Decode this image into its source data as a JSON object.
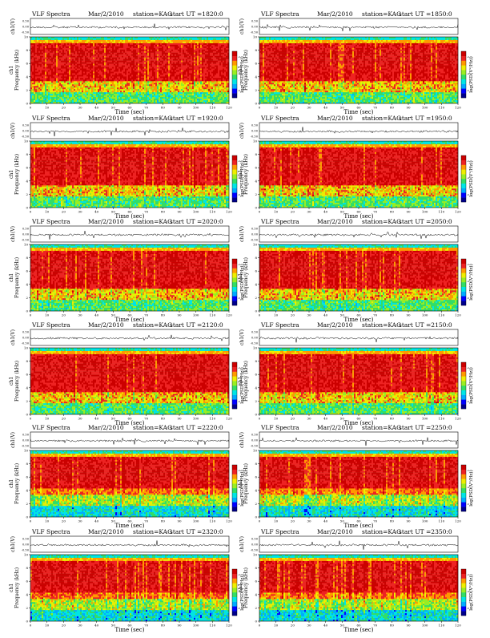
{
  "chart_data": [
    {
      "type": "heatmap",
      "title": "VLF Spectra",
      "date": "Mar/2/2010",
      "station": "station=KAG",
      "start_ut": "start  UT =1820:0",
      "top_ylabel": "ch1(V)",
      "top_ticks": [
        "0.50",
        "0.00",
        "-0.50"
      ],
      "ylabel": "Frequency (kHz)",
      "ylabel2": "ch1",
      "cbar_label": "log(PSD(V²/Hz))",
      "xlabel": "Time (sec)",
      "xlim": [
        0,
        120
      ],
      "ylim": [
        0,
        10
      ],
      "xticks": [
        "0",
        "10",
        "20",
        "30",
        "40",
        "50",
        "60",
        "70",
        "80",
        "90",
        "100",
        "110",
        "120"
      ],
      "yticks": [
        "0",
        "2",
        "4",
        "6",
        "8",
        "10"
      ],
      "cbar_ticks": [
        "-2",
        "-4",
        "-6"
      ]
    },
    {
      "type": "heatmap",
      "title": "VLF Spectra",
      "date": "Mar/2/2010",
      "station": "station=KAG",
      "start_ut": "start  UT =1850:0",
      "top_ylabel": "ch1(V)",
      "top_ticks": [
        "0.50",
        "0.00",
        "-0.50"
      ],
      "ylabel": "Frequency (kHz)",
      "ylabel2": "ch1",
      "cbar_label": "log(PSD(V²/Hz))",
      "xlabel": "Time (sec)",
      "xlim": [
        0,
        120
      ],
      "ylim": [
        0,
        10
      ],
      "xticks": [
        "0",
        "10",
        "20",
        "30",
        "40",
        "50",
        "60",
        "70",
        "80",
        "90",
        "100",
        "110",
        "120"
      ],
      "yticks": [
        "0",
        "2",
        "4",
        "6",
        "8",
        "10"
      ],
      "cbar_ticks": [
        "-2",
        "-4",
        "-6"
      ]
    },
    {
      "type": "heatmap",
      "title": "VLF Spectra",
      "date": "Mar/2/2010",
      "station": "station=KAG",
      "start_ut": "start  UT =1920:0",
      "top_ylabel": "ch1(V)",
      "top_ticks": [
        "0.50",
        "0.00",
        "-0.50"
      ],
      "ylabel": "Frequency (kHz)",
      "ylabel2": "ch1",
      "cbar_label": "log(PSD(V²/Hz))",
      "xlabel": "Time (sec)",
      "xlim": [
        0,
        120
      ],
      "ylim": [
        0,
        10
      ],
      "xticks": [
        "0",
        "10",
        "20",
        "30",
        "40",
        "50",
        "60",
        "70",
        "80",
        "90",
        "100",
        "110",
        "120"
      ],
      "yticks": [
        "0",
        "2",
        "4",
        "6",
        "8",
        "10"
      ],
      "cbar_ticks": [
        "-2",
        "-4",
        "-6"
      ]
    },
    {
      "type": "heatmap",
      "title": "VLF Spectra",
      "date": "Mar/2/2010",
      "station": "station=KAG",
      "start_ut": "start  UT =1950:0",
      "top_ylabel": "ch1(V)",
      "top_ticks": [
        "0.50",
        "0.00",
        "-0.50"
      ],
      "ylabel": "Frequency (kHz)",
      "ylabel2": "ch1",
      "cbar_label": "log(PSD(V²/Hz))",
      "xlabel": "Time (sec)",
      "xlim": [
        0,
        120
      ],
      "ylim": [
        0,
        10
      ],
      "xticks": [
        "0",
        "10",
        "20",
        "30",
        "40",
        "50",
        "60",
        "70",
        "80",
        "90",
        "100",
        "110",
        "120"
      ],
      "yticks": [
        "0",
        "2",
        "4",
        "6",
        "8",
        "10"
      ],
      "cbar_ticks": [
        "-2",
        "-4",
        "-6"
      ]
    },
    {
      "type": "heatmap",
      "title": "VLF Spectra",
      "date": "Mar/2/2010",
      "station": "station=KAG",
      "start_ut": "start  UT =2020:0",
      "top_ylabel": "ch1(V)",
      "top_ticks": [
        "0.50",
        "0.00",
        "-0.50"
      ],
      "ylabel": "Frequency (kHz)",
      "ylabel2": "ch1",
      "cbar_label": "log(PSD(V²/Hz))",
      "xlabel": "Time (sec)",
      "xlim": [
        0,
        120
      ],
      "ylim": [
        0,
        10
      ],
      "xticks": [
        "0",
        "10",
        "20",
        "30",
        "40",
        "50",
        "60",
        "70",
        "80",
        "90",
        "100",
        "110",
        "120"
      ],
      "yticks": [
        "0",
        "2",
        "4",
        "6",
        "8",
        "10"
      ],
      "cbar_ticks": [
        "-2",
        "-4",
        "-6"
      ]
    },
    {
      "type": "heatmap",
      "title": "VLF Spectra",
      "date": "Mar/2/2010",
      "station": "station=KAG",
      "start_ut": "start  UT =2050:0",
      "top_ylabel": "ch1(V)",
      "top_ticks": [
        "0.50",
        "0.00",
        "-0.50"
      ],
      "ylabel": "Frequency (kHz)",
      "ylabel2": "ch1",
      "cbar_label": "log(PSD(V²/Hz))",
      "xlabel": "Time (sec)",
      "xlim": [
        0,
        120
      ],
      "ylim": [
        0,
        10
      ],
      "xticks": [
        "0",
        "10",
        "20",
        "30",
        "40",
        "50",
        "60",
        "70",
        "80",
        "90",
        "100",
        "110",
        "120"
      ],
      "yticks": [
        "0",
        "2",
        "4",
        "6",
        "8",
        "10"
      ],
      "cbar_ticks": [
        "-2",
        "-4",
        "-6"
      ]
    },
    {
      "type": "heatmap",
      "title": "VLF Spectra",
      "date": "Mar/2/2010",
      "station": "station=KAG",
      "start_ut": "start  UT =2120:0",
      "top_ylabel": "ch1(V)",
      "top_ticks": [
        "0.50",
        "0.00",
        "-0.50"
      ],
      "ylabel": "Frequency (kHz)",
      "ylabel2": "ch1",
      "cbar_label": "log(PSD(V²/Hz))",
      "xlabel": "Time (sec)",
      "xlim": [
        0,
        120
      ],
      "ylim": [
        0,
        10
      ],
      "xticks": [
        "0",
        "10",
        "20",
        "30",
        "40",
        "50",
        "60",
        "70",
        "80",
        "90",
        "100",
        "110",
        "120"
      ],
      "yticks": [
        "0",
        "2",
        "4",
        "6",
        "8",
        "10"
      ],
      "cbar_ticks": [
        "-2",
        "-4",
        "-6"
      ]
    },
    {
      "type": "heatmap",
      "title": "VLF Spectra",
      "date": "Mar/2/2010",
      "station": "station=KAG",
      "start_ut": "start  UT =2150:0",
      "top_ylabel": "ch1(V)",
      "top_ticks": [
        "0.50",
        "0.00",
        "-0.50"
      ],
      "ylabel": "Frequency (kHz)",
      "ylabel2": "ch1",
      "cbar_label": "log(PSD(V²/Hz))",
      "xlabel": "Time (sec)",
      "xlim": [
        0,
        120
      ],
      "ylim": [
        0,
        10
      ],
      "xticks": [
        "0",
        "10",
        "20",
        "30",
        "40",
        "50",
        "60",
        "70",
        "80",
        "90",
        "100",
        "110",
        "120"
      ],
      "yticks": [
        "0",
        "2",
        "4",
        "6",
        "8",
        "10"
      ],
      "cbar_ticks": [
        "-2",
        "-4",
        "-6"
      ]
    },
    {
      "type": "heatmap",
      "title": "VLF Spectra",
      "date": "Mar/2/2010",
      "station": "station=KAG",
      "start_ut": "start  UT =2220:0",
      "top_ylabel": "ch1(V)",
      "top_ticks": [
        "0.50",
        "0.00",
        "-0.50"
      ],
      "ylabel": "Frequency (kHz)",
      "ylabel2": "ch1",
      "cbar_label": "log(PSD(V²/Hz))",
      "xlabel": "Time (sec)",
      "xlim": [
        0,
        120
      ],
      "ylim": [
        0,
        10
      ],
      "xticks": [
        "0",
        "10",
        "20",
        "30",
        "40",
        "50",
        "60",
        "70",
        "80",
        "90",
        "100",
        "110",
        "120"
      ],
      "yticks": [
        "0",
        "2",
        "4",
        "6",
        "8",
        "10"
      ],
      "cbar_ticks": [
        "-2",
        "-4",
        "-6"
      ]
    },
    {
      "type": "heatmap",
      "title": "VLF Spectra",
      "date": "Mar/2/2010",
      "station": "station=KAG",
      "start_ut": "start  UT =2250:0",
      "top_ylabel": "ch1(V)",
      "top_ticks": [
        "0.50",
        "0.00",
        "-0.50"
      ],
      "ylabel": "Frequency (kHz)",
      "ylabel2": "ch1",
      "cbar_label": "log(PSD(V²/Hz))",
      "xlabel": "Time (sec)",
      "xlim": [
        0,
        120
      ],
      "ylim": [
        0,
        10
      ],
      "xticks": [
        "0",
        "10",
        "20",
        "30",
        "40",
        "50",
        "60",
        "70",
        "80",
        "90",
        "100",
        "110",
        "120"
      ],
      "yticks": [
        "0",
        "2",
        "4",
        "6",
        "8",
        "10"
      ],
      "cbar_ticks": [
        "-2",
        "-4",
        "-6"
      ]
    },
    {
      "type": "heatmap",
      "title": "VLF Spectra",
      "date": "Mar/2/2010",
      "station": "station=KAG",
      "start_ut": "start  UT =2320:0",
      "top_ylabel": "ch1(V)",
      "top_ticks": [
        "0.50",
        "0.00",
        "-0.50"
      ],
      "ylabel": "Frequency (kHz)",
      "ylabel2": "ch1",
      "cbar_label": "log(PSD(V²/Hz))",
      "xlabel": "Time (sec)",
      "xlim": [
        0,
        120
      ],
      "ylim": [
        0,
        10
      ],
      "xticks": [
        "0",
        "10",
        "20",
        "30",
        "40",
        "50",
        "60",
        "70",
        "80",
        "90",
        "100",
        "110",
        "120"
      ],
      "yticks": [
        "0",
        "2",
        "4",
        "6",
        "8",
        "10"
      ],
      "cbar_ticks": [
        "-2",
        "-4",
        "-6"
      ]
    },
    {
      "type": "heatmap",
      "title": "VLF Spectra",
      "date": "Mar/2/2010",
      "station": "station=KAG",
      "start_ut": "start  UT =2350:0",
      "top_ylabel": "ch1(V)",
      "top_ticks": [
        "0.50",
        "0.00",
        "-0.50"
      ],
      "ylabel": "Frequency (kHz)",
      "ylabel2": "ch1",
      "cbar_label": "log(PSD(V²/Hz))",
      "xlabel": "Time (sec)",
      "xlim": [
        0,
        120
      ],
      "ylim": [
        0,
        10
      ],
      "xticks": [
        "0",
        "10",
        "20",
        "30",
        "40",
        "50",
        "60",
        "70",
        "80",
        "90",
        "100",
        "110",
        "120"
      ],
      "yticks": [
        "0",
        "2",
        "4",
        "6",
        "8",
        "10"
      ],
      "cbar_ticks": [
        "-2",
        "-4",
        "-6"
      ]
    }
  ],
  "colors": {
    "colormap": [
      "#00008b",
      "#0000ff",
      "#00aaff",
      "#00e5e5",
      "#33dd66",
      "#99ee22",
      "#eeee00",
      "#ff9900",
      "#ee2222",
      "#cc0000"
    ],
    "background": "#ffffff",
    "ink": "#000000"
  }
}
